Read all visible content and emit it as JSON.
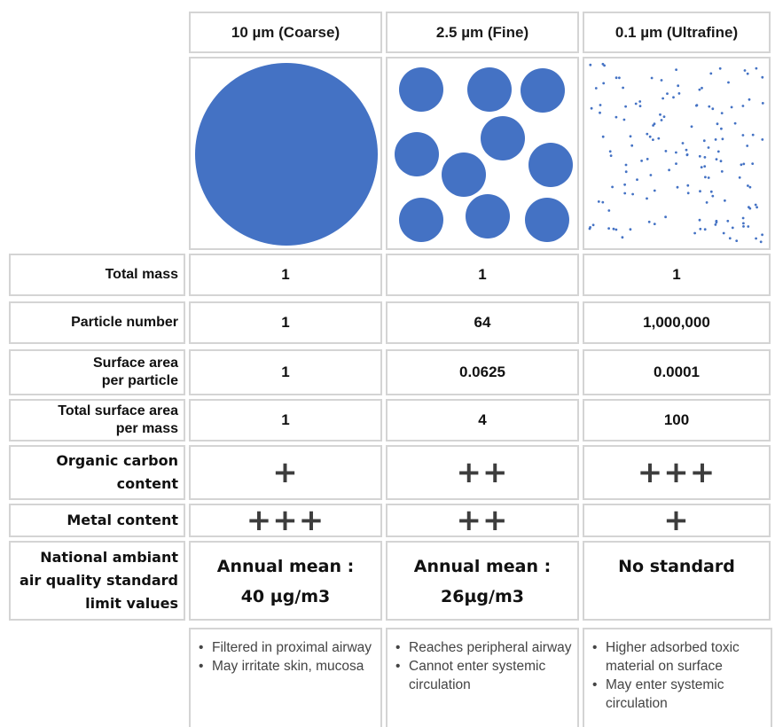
{
  "columns": [
    {
      "header": "10 µm (Coarse)"
    },
    {
      "header": "2.5 µm (Fine)"
    },
    {
      "header": "0.1 µm (Ultrafine)"
    }
  ],
  "rows": [
    {
      "label": "Total mass",
      "values": [
        "1",
        "1",
        "1"
      ]
    },
    {
      "label": "Particle number",
      "values": [
        "1",
        "64",
        "1,000,000"
      ]
    },
    {
      "label_lines": [
        "Surface area",
        "per particle"
      ],
      "values": [
        "1",
        "0.0625",
        "0.0001"
      ]
    },
    {
      "label_lines": [
        "Total surface area",
        "per mass"
      ],
      "values": [
        "1",
        "4",
        "100"
      ]
    },
    {
      "label_lines": [
        "Organic carbon",
        "content"
      ],
      "values": [
        "+",
        "++",
        "+++"
      ]
    },
    {
      "label": "Metal content",
      "values": [
        "+++",
        "++",
        "+"
      ]
    },
    {
      "label_lines": [
        "National ambiant",
        "air quality standard",
        "limit values"
      ],
      "values": [
        [
          "Annual mean :",
          "40 µg/m3"
        ],
        [
          "Annual mean :",
          "26µg/m3"
        ],
        [
          "No standard"
        ]
      ]
    }
  ],
  "notes": [
    [
      "Filtered in proximal airway",
      "May irritate skin, mucosa"
    ],
    [
      "Reaches peripheral airway",
      "Cannot enter systemic circulation"
    ],
    [
      "Higher adsorbed toxic material on surface",
      "May enter systemic circulation"
    ]
  ],
  "colors": {
    "particle": "#4472c4",
    "border": "#d4d4d4",
    "symbol": "#3d3d3d"
  }
}
